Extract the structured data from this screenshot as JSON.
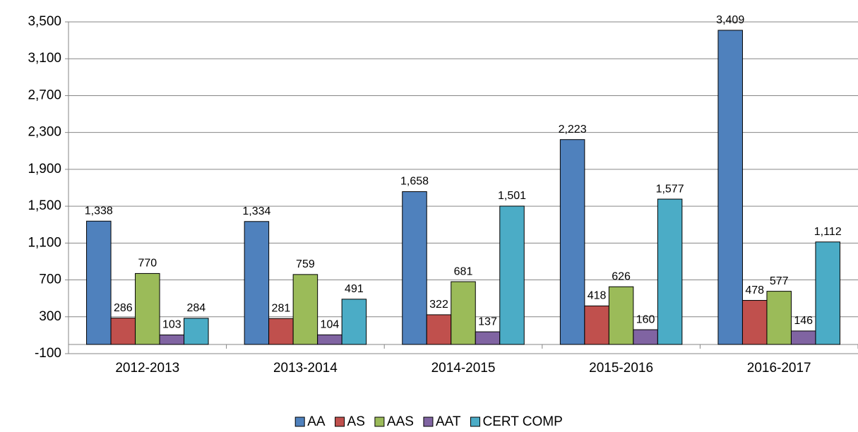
{
  "chart_data": {
    "type": "bar",
    "categories": [
      "2012-2013",
      "2013-2014",
      "2014-2015",
      "2015-2016",
      "2016-2017"
    ],
    "series": [
      {
        "name": "AA",
        "color": "#4f81bd",
        "values": [
          1338,
          1334,
          1658,
          2223,
          3409
        ],
        "value_labels": [
          "1,338",
          "1,334",
          "1,658",
          "2,223",
          "3,409"
        ]
      },
      {
        "name": "AS",
        "color": "#c0504d",
        "values": [
          286,
          281,
          322,
          418,
          478
        ],
        "value_labels": [
          "286",
          "281",
          "322",
          "418",
          "478"
        ]
      },
      {
        "name": "AAS",
        "color": "#9bbb59",
        "values": [
          770,
          759,
          681,
          626,
          577
        ],
        "value_labels": [
          "770",
          "759",
          "681",
          "626",
          "577"
        ]
      },
      {
        "name": "AAT",
        "color": "#8064a2",
        "values": [
          103,
          104,
          137,
          160,
          146
        ],
        "value_labels": [
          "103",
          "104",
          "137",
          "160",
          "146"
        ]
      },
      {
        "name": "CERT COMP",
        "color": "#4bacc6",
        "values": [
          284,
          491,
          1501,
          1577,
          1112
        ],
        "value_labels": [
          "284",
          "491",
          "1,501",
          "1,577",
          "1,112"
        ]
      }
    ],
    "ylim": [
      -100,
      3500
    ],
    "yticks": [
      -100,
      300,
      700,
      {
        "value": 1100,
        "label": "1,100"
      },
      {
        "value": 1500,
        "label": "1,500"
      },
      {
        "value": 1900,
        "label": "1,900"
      },
      {
        "value": 2300,
        "label": "2,300"
      },
      {
        "value": 2700,
        "label": "2,700"
      },
      {
        "value": 3100,
        "label": "3,100"
      },
      {
        "value": 3500,
        "label": "3,500"
      }
    ],
    "grid": true,
    "legend": "bottom"
  }
}
